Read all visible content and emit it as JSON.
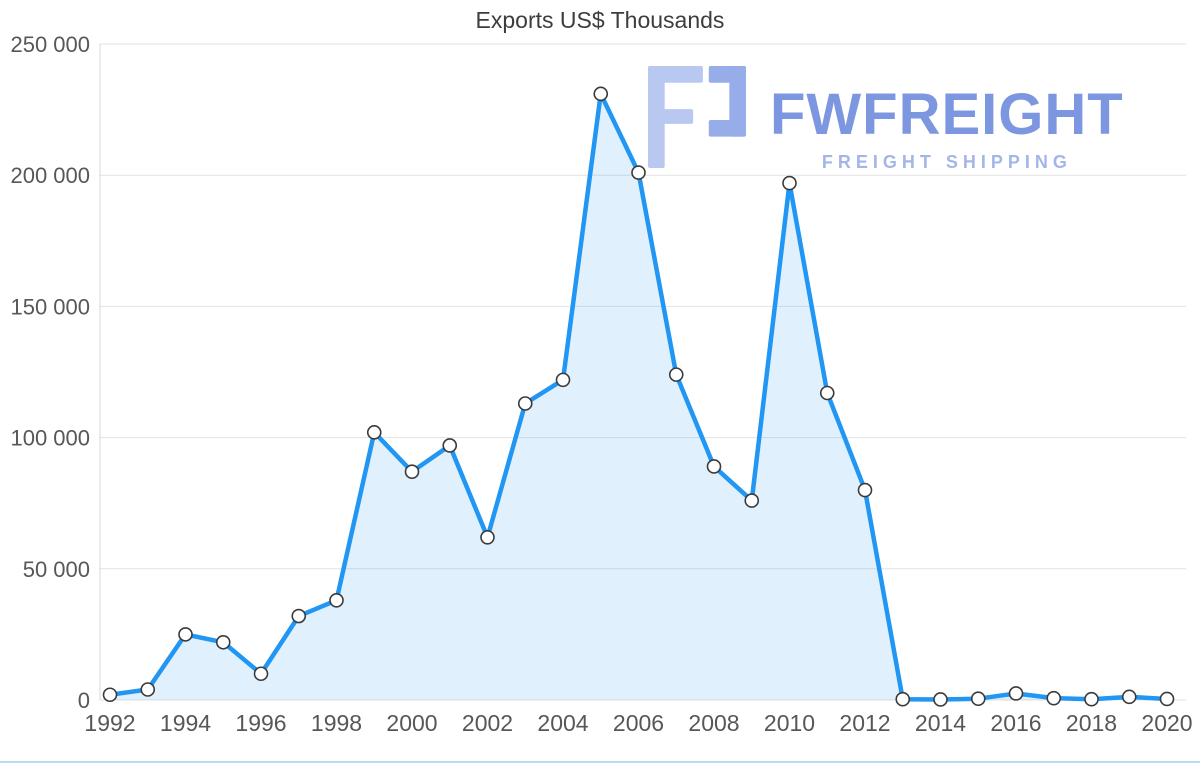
{
  "chart_title": "Exports US$ Thousands",
  "watermark": {
    "brand": "FWFREIGHT",
    "tagline": "FREIGHT SHIPPING",
    "brand_color": "#5c7cd8",
    "tagline_color": "#8ea5e2",
    "icon_light_color": "#a7bbee",
    "icon_dark_color": "#7e99e4"
  },
  "chart_data": {
    "type": "area",
    "title": "Exports US$ Thousands",
    "xlabel": "",
    "ylabel": "",
    "legend": "none",
    "grid": true,
    "x": [
      1992,
      1993,
      1994,
      1995,
      1996,
      1997,
      1998,
      1999,
      2000,
      2001,
      2002,
      2003,
      2004,
      2005,
      2006,
      2007,
      2008,
      2009,
      2010,
      2011,
      2012,
      2013,
      2014,
      2015,
      2016,
      2017,
      2018,
      2019,
      2020
    ],
    "values": [
      2000,
      4000,
      25000,
      22000,
      10000,
      32000,
      38000,
      102000,
      87000,
      97000,
      62000,
      113000,
      122000,
      231000,
      201000,
      124000,
      89000,
      76000,
      197000,
      117000,
      80000,
      300,
      200,
      500,
      2500,
      700,
      300,
      1200,
      400
    ],
    "ylim": [
      0,
      250000
    ],
    "y_ticks": [
      0,
      50000,
      100000,
      150000,
      200000,
      250000
    ],
    "y_tick_labels": [
      "0",
      "50 000",
      "100 000",
      "150 000",
      "200 000",
      "250 000"
    ],
    "x_tick_labels": [
      "1992",
      "1994",
      "1996",
      "1998",
      "2000",
      "2002",
      "2004",
      "2006",
      "2008",
      "2010",
      "2012",
      "2014",
      "2016",
      "2018",
      "2020"
    ],
    "line_color": "#2196f3",
    "fill_opacity": 0.14,
    "grid_color": "#e2e2e2",
    "axis_color": "#d7d7d7",
    "tick_color": "#575757",
    "marker_fill": "#ffffff",
    "marker_stroke": "#3a3a3a",
    "bottom_accent_color": "#b9dcf6"
  }
}
